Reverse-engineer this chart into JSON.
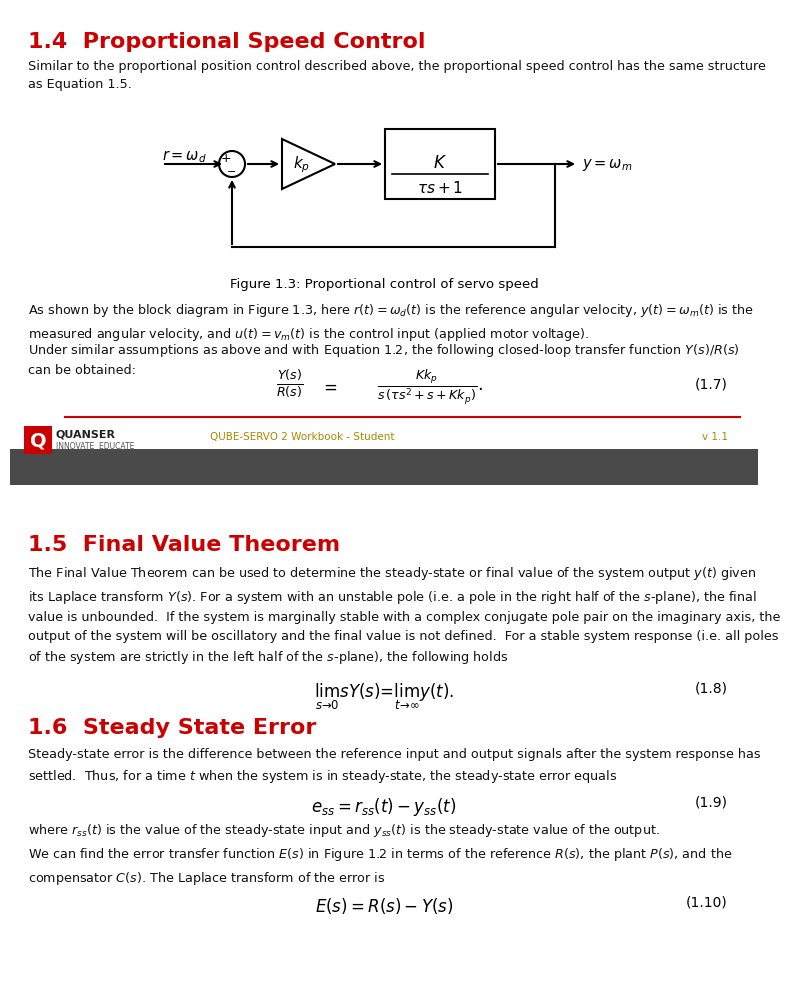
{
  "title_14": "1.4  Proportional Speed Control",
  "title_15": "1.5  Final Value Theorem",
  "title_16": "1.6  Steady State Error",
  "title_color": "#CC0000",
  "fig_caption": "Figure 1.3: Proportional control of servo speed",
  "text_14_body": "Similar to the proportional position control described above, the proportional speed control has the same structure\nas Equation 1.5.",
  "text_14_body2": "As shown by the block diagram in Figure 1.3, here $r(t) = \\omega_d(t)$ is the reference angular velocity, $y(t) = \\omega_m(t)$ is the\nmeasured angular velocity, and $u(t) = v_m(t)$ is the control input (applied motor voltage).",
  "text_14_body3": "Under similar assumptions as above and with Equation 1.2, the following closed-loop transfer function $Y(s)/R(s)$\ncan be obtained:",
  "eq17_label": "(1.7)",
  "text_15_body": "The Final Value Theorem can be used to determine the steady-state or final value of the system output $y(t)$ given\nits Laplace transform $Y(s)$. For a system with an unstable pole (i.e. a pole in the right half of the $s$-plane), the final\nvalue is unbounded.  If the system is marginally stable with a complex conjugate pole pair on the imaginary axis, the\noutput of the system will be oscillatory and the final value is not defined.  For a stable system response (i.e. all poles\nof the system are strictly in the left half of the $s$-plane), the following holds",
  "eq18_label": "(1.8)",
  "text_16_body": "Steady-state error is the difference between the reference input and output signals after the system response has\nsettled.  Thus, for a time $t$ when the system is in steady-state, the steady-state error equals",
  "eq19_label": "(1.9)",
  "text_16_body2": "where $r_{ss}(t)$ is the value of the steady-state input and $y_{ss}(t)$ is the steady-state value of the output.",
  "text_16_body3": "We can find the error transfer function $E(s)$ in Figure 1.2 in terms of the reference $R(s)$, the plant $P(s)$, and the\ncompensator $C(s)$. The Laplace transform of the error is",
  "eq110_label": "(1.10)",
  "footer_text": "QUBE-SERVO 2 Workbook - Student",
  "footer_version": "v 1.1",
  "quanser_text": "QUANSER",
  "quanser_sub": "INNOVATE  EDUCATE",
  "dark_bar_color": "#4a4a4a",
  "red_line_color": "#CC0000",
  "background": "#ffffff"
}
